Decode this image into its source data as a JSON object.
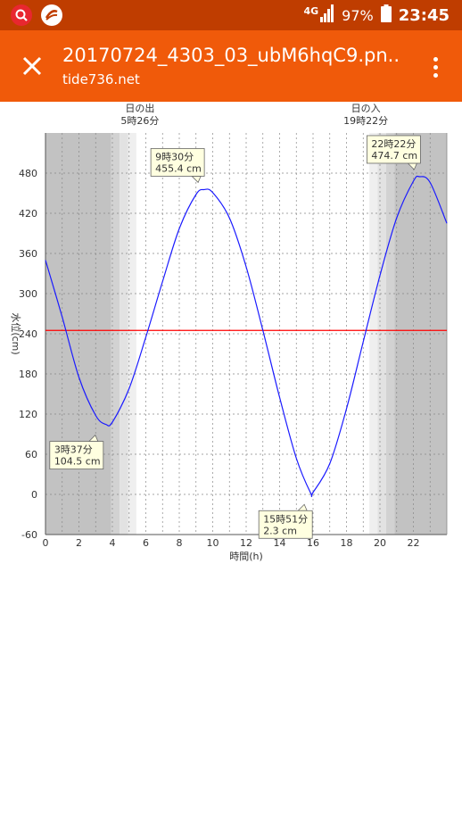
{
  "status_bar": {
    "network": "4G",
    "battery": "97%",
    "time": "23:45",
    "icons": [
      "search-app-icon",
      "app-logo-icon",
      "signal-icon",
      "battery-icon"
    ]
  },
  "app_bar": {
    "title": "20170724_4303_03_ubM6hqC9.pn...",
    "subtitle": "tide736.net",
    "close_icon": "close-icon",
    "menu_icon": "more-vert-icon"
  },
  "colors": {
    "status_bar": "#bf3d00",
    "app_bar": "#f05a0a",
    "tide_line": "#1a1aff",
    "reference_line": "#ff0000",
    "night_shade": "#c0c0c0"
  },
  "chart_data": {
    "type": "line",
    "xlabel": "時間(h)",
    "ylabel": "水位(cm)",
    "xlim": [
      0,
      24
    ],
    "ylim": [
      -60,
      540
    ],
    "x_ticks": [
      0,
      2,
      4,
      6,
      8,
      10,
      12,
      14,
      16,
      18,
      20,
      22
    ],
    "y_ticks": [
      -60,
      0,
      60,
      120,
      180,
      240,
      300,
      360,
      420,
      480
    ],
    "grid": true,
    "reference_line": 245,
    "sunrise": {
      "label": "日の出",
      "time_text": "5時26分",
      "hour": 5.433
    },
    "sunset": {
      "label": "日の入",
      "time_text": "19時22分",
      "hour": 19.367
    },
    "extremes": [
      {
        "time_text": "3時37分",
        "level_text": "104.5 cm",
        "hour": 3.617,
        "value": 104.5
      },
      {
        "time_text": "9時30分",
        "level_text": "455.4 cm",
        "hour": 9.5,
        "value": 455.4
      },
      {
        "time_text": "15時51分",
        "level_text": "2.3 cm",
        "hour": 15.85,
        "value": 2.3
      },
      {
        "time_text": "22時22分",
        "level_text": "474.7 cm",
        "hour": 22.367,
        "value": 474.7
      }
    ],
    "series": [
      {
        "x": [
          0,
          1,
          2,
          3,
          3.617,
          4,
          5,
          6,
          7,
          8,
          9,
          9.5,
          10,
          11,
          12,
          13,
          14,
          15,
          15.85,
          16,
          17,
          18,
          19,
          20,
          21,
          22,
          22.367,
          23,
          24
        ],
        "values": [
          350,
          265,
          175,
          118,
          104.5,
          108,
          158,
          235,
          318,
          397,
          448,
          455.4,
          451,
          413,
          340,
          245,
          145,
          54,
          2.3,
          3,
          46,
          128,
          228,
          327,
          413,
          468,
          474.7,
          466,
          405
        ]
      }
    ]
  }
}
